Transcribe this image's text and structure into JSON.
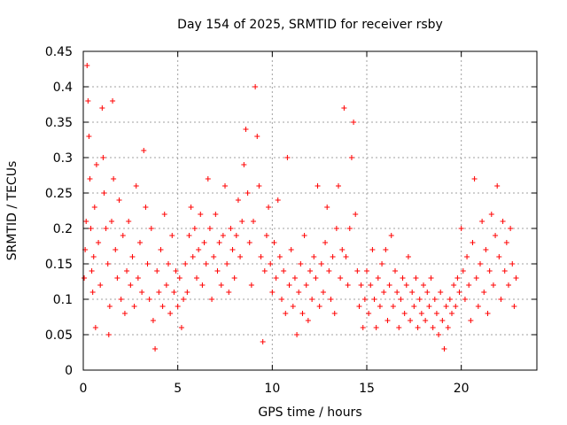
{
  "chart_data": {
    "type": "scatter",
    "title": "Day 154 of 2025, SRMTID for receiver rsby",
    "xlabel": "GPS time / hours",
    "ylabel": "SRMTID / TECUs",
    "xlim": [
      0,
      24
    ],
    "ylim": [
      0,
      0.45
    ],
    "xticks": [
      0,
      5,
      10,
      15,
      20
    ],
    "xtick_labels": [
      "0",
      "5",
      "10",
      "15",
      "20"
    ],
    "yticks": [
      0,
      0.05,
      0.1,
      0.15,
      0.2,
      0.25,
      0.3,
      0.35,
      0.4,
      0.45
    ],
    "ytick_labels": [
      "0",
      "0.05",
      "0.1",
      "0.15",
      "0.2",
      "0.25",
      "0.3",
      "0.35",
      "0.4",
      "0.45"
    ],
    "grid": true,
    "marker": "+",
    "series": [
      {
        "name": "SRMTID",
        "color": "#ff0000",
        "points": [
          [
            0.05,
            0.13
          ],
          [
            0.1,
            0.17
          ],
          [
            0.15,
            0.21
          ],
          [
            0.2,
            0.43
          ],
          [
            0.25,
            0.38
          ],
          [
            0.3,
            0.33
          ],
          [
            0.35,
            0.27
          ],
          [
            0.4,
            0.2
          ],
          [
            0.45,
            0.14
          ],
          [
            0.5,
            0.11
          ],
          [
            0.55,
            0.16
          ],
          [
            0.6,
            0.23
          ],
          [
            0.65,
            0.06
          ],
          [
            0.7,
            0.29
          ],
          [
            0.8,
            0.18
          ],
          [
            0.9,
            0.12
          ],
          [
            1.0,
            0.37
          ],
          [
            1.05,
            0.3
          ],
          [
            1.1,
            0.25
          ],
          [
            1.2,
            0.2
          ],
          [
            1.3,
            0.15
          ],
          [
            1.35,
            0.05
          ],
          [
            1.4,
            0.09
          ],
          [
            1.5,
            0.21
          ],
          [
            1.55,
            0.38
          ],
          [
            1.6,
            0.27
          ],
          [
            1.7,
            0.17
          ],
          [
            1.8,
            0.13
          ],
          [
            1.9,
            0.24
          ],
          [
            2.0,
            0.1
          ],
          [
            2.1,
            0.19
          ],
          [
            2.2,
            0.08
          ],
          [
            2.3,
            0.14
          ],
          [
            2.4,
            0.21
          ],
          [
            2.5,
            0.12
          ],
          [
            2.6,
            0.16
          ],
          [
            2.7,
            0.09
          ],
          [
            2.8,
            0.26
          ],
          [
            2.9,
            0.13
          ],
          [
            3.0,
            0.18
          ],
          [
            3.1,
            0.11
          ],
          [
            3.2,
            0.31
          ],
          [
            3.3,
            0.23
          ],
          [
            3.4,
            0.15
          ],
          [
            3.5,
            0.1
          ],
          [
            3.6,
            0.2
          ],
          [
            3.7,
            0.07
          ],
          [
            3.8,
            0.03
          ],
          [
            3.9,
            0.14
          ],
          [
            4.0,
            0.11
          ],
          [
            4.1,
            0.17
          ],
          [
            4.2,
            0.09
          ],
          [
            4.3,
            0.22
          ],
          [
            4.4,
            0.12
          ],
          [
            4.5,
            0.15
          ],
          [
            4.6,
            0.08
          ],
          [
            4.7,
            0.19
          ],
          [
            4.8,
            0.11
          ],
          [
            4.9,
            0.14
          ],
          [
            5.0,
            0.09
          ],
          [
            5.1,
            0.13
          ],
          [
            5.2,
            0.06
          ],
          [
            5.3,
            0.1
          ],
          [
            5.4,
            0.15
          ],
          [
            5.5,
            0.11
          ],
          [
            5.6,
            0.19
          ],
          [
            5.7,
            0.23
          ],
          [
            5.8,
            0.16
          ],
          [
            5.9,
            0.2
          ],
          [
            6.0,
            0.13
          ],
          [
            6.1,
            0.17
          ],
          [
            6.2,
            0.22
          ],
          [
            6.3,
            0.12
          ],
          [
            6.4,
            0.18
          ],
          [
            6.5,
            0.15
          ],
          [
            6.6,
            0.27
          ],
          [
            6.7,
            0.2
          ],
          [
            6.8,
            0.1
          ],
          [
            6.9,
            0.16
          ],
          [
            7.0,
            0.22
          ],
          [
            7.1,
            0.14
          ],
          [
            7.2,
            0.18
          ],
          [
            7.3,
            0.12
          ],
          [
            7.4,
            0.19
          ],
          [
            7.5,
            0.26
          ],
          [
            7.6,
            0.15
          ],
          [
            7.7,
            0.11
          ],
          [
            7.8,
            0.2
          ],
          [
            7.9,
            0.17
          ],
          [
            8.0,
            0.13
          ],
          [
            8.1,
            0.19
          ],
          [
            8.2,
            0.24
          ],
          [
            8.3,
            0.16
          ],
          [
            8.4,
            0.21
          ],
          [
            8.5,
            0.29
          ],
          [
            8.6,
            0.34
          ],
          [
            8.7,
            0.25
          ],
          [
            8.8,
            0.18
          ],
          [
            8.9,
            0.12
          ],
          [
            9.0,
            0.21
          ],
          [
            9.1,
            0.4
          ],
          [
            9.2,
            0.33
          ],
          [
            9.3,
            0.26
          ],
          [
            9.4,
            0.16
          ],
          [
            9.5,
            0.04
          ],
          [
            9.6,
            0.14
          ],
          [
            9.7,
            0.19
          ],
          [
            9.8,
            0.23
          ],
          [
            9.9,
            0.15
          ],
          [
            10.0,
            0.11
          ],
          [
            10.1,
            0.18
          ],
          [
            10.2,
            0.13
          ],
          [
            10.3,
            0.24
          ],
          [
            10.4,
            0.16
          ],
          [
            10.5,
            0.1
          ],
          [
            10.6,
            0.14
          ],
          [
            10.7,
            0.08
          ],
          [
            10.8,
            0.3
          ],
          [
            10.9,
            0.12
          ],
          [
            11.0,
            0.17
          ],
          [
            11.1,
            0.09
          ],
          [
            11.2,
            0.13
          ],
          [
            11.3,
            0.05
          ],
          [
            11.4,
            0.11
          ],
          [
            11.5,
            0.15
          ],
          [
            11.6,
            0.08
          ],
          [
            11.7,
            0.19
          ],
          [
            11.8,
            0.12
          ],
          [
            11.9,
            0.07
          ],
          [
            12.0,
            0.14
          ],
          [
            12.1,
            0.1
          ],
          [
            12.2,
            0.16
          ],
          [
            12.3,
            0.13
          ],
          [
            12.4,
            0.26
          ],
          [
            12.5,
            0.09
          ],
          [
            12.6,
            0.15
          ],
          [
            12.7,
            0.11
          ],
          [
            12.8,
            0.18
          ],
          [
            12.9,
            0.23
          ],
          [
            13.0,
            0.14
          ],
          [
            13.1,
            0.1
          ],
          [
            13.2,
            0.16
          ],
          [
            13.3,
            0.08
          ],
          [
            13.4,
            0.2
          ],
          [
            13.5,
            0.26
          ],
          [
            13.6,
            0.13
          ],
          [
            13.7,
            0.17
          ],
          [
            13.8,
            0.37
          ],
          [
            13.9,
            0.16
          ],
          [
            14.0,
            0.12
          ],
          [
            14.1,
            0.2
          ],
          [
            14.2,
            0.3
          ],
          [
            14.3,
            0.35
          ],
          [
            14.4,
            0.22
          ],
          [
            14.5,
            0.14
          ],
          [
            14.6,
            0.09
          ],
          [
            14.7,
            0.12
          ],
          [
            14.8,
            0.06
          ],
          [
            14.9,
            0.1
          ],
          [
            15.0,
            0.14
          ],
          [
            15.1,
            0.08
          ],
          [
            15.2,
            0.12
          ],
          [
            15.3,
            0.17
          ],
          [
            15.4,
            0.1
          ],
          [
            15.5,
            0.06
          ],
          [
            15.6,
            0.13
          ],
          [
            15.7,
            0.09
          ],
          [
            15.8,
            0.15
          ],
          [
            15.9,
            0.11
          ],
          [
            16.0,
            0.17
          ],
          [
            16.1,
            0.07
          ],
          [
            16.2,
            0.12
          ],
          [
            16.3,
            0.19
          ],
          [
            16.4,
            0.09
          ],
          [
            16.5,
            0.14
          ],
          [
            16.6,
            0.11
          ],
          [
            16.7,
            0.06
          ],
          [
            16.8,
            0.1
          ],
          [
            16.9,
            0.13
          ],
          [
            17.0,
            0.08
          ],
          [
            17.1,
            0.12
          ],
          [
            17.2,
            0.16
          ],
          [
            17.3,
            0.07
          ],
          [
            17.4,
            0.11
          ],
          [
            17.5,
            0.09
          ],
          [
            17.6,
            0.13
          ],
          [
            17.7,
            0.06
          ],
          [
            17.8,
            0.1
          ],
          [
            17.9,
            0.08
          ],
          [
            18.0,
            0.12
          ],
          [
            18.1,
            0.07
          ],
          [
            18.2,
            0.11
          ],
          [
            18.3,
            0.09
          ],
          [
            18.4,
            0.13
          ],
          [
            18.5,
            0.06
          ],
          [
            18.6,
            0.1
          ],
          [
            18.7,
            0.08
          ],
          [
            18.8,
            0.05
          ],
          [
            18.9,
            0.11
          ],
          [
            19.0,
            0.07
          ],
          [
            19.1,
            0.03
          ],
          [
            19.2,
            0.09
          ],
          [
            19.3,
            0.06
          ],
          [
            19.4,
            0.1
          ],
          [
            19.5,
            0.08
          ],
          [
            19.6,
            0.12
          ],
          [
            19.7,
            0.09
          ],
          [
            19.8,
            0.13
          ],
          [
            19.9,
            0.11
          ],
          [
            20.0,
            0.2
          ],
          [
            20.1,
            0.14
          ],
          [
            20.2,
            0.1
          ],
          [
            20.3,
            0.16
          ],
          [
            20.4,
            0.12
          ],
          [
            20.5,
            0.07
          ],
          [
            20.6,
            0.18
          ],
          [
            20.7,
            0.27
          ],
          [
            20.8,
            0.13
          ],
          [
            20.9,
            0.09
          ],
          [
            21.0,
            0.15
          ],
          [
            21.1,
            0.21
          ],
          [
            21.2,
            0.11
          ],
          [
            21.3,
            0.17
          ],
          [
            21.4,
            0.08
          ],
          [
            21.5,
            0.14
          ],
          [
            21.6,
            0.22
          ],
          [
            21.7,
            0.12
          ],
          [
            21.8,
            0.19
          ],
          [
            21.9,
            0.26
          ],
          [
            22.0,
            0.16
          ],
          [
            22.1,
            0.1
          ],
          [
            22.2,
            0.21
          ],
          [
            22.3,
            0.14
          ],
          [
            22.4,
            0.18
          ],
          [
            22.5,
            0.12
          ],
          [
            22.6,
            0.2
          ],
          [
            22.7,
            0.15
          ],
          [
            22.8,
            0.09
          ],
          [
            22.9,
            0.13
          ]
        ]
      }
    ]
  }
}
